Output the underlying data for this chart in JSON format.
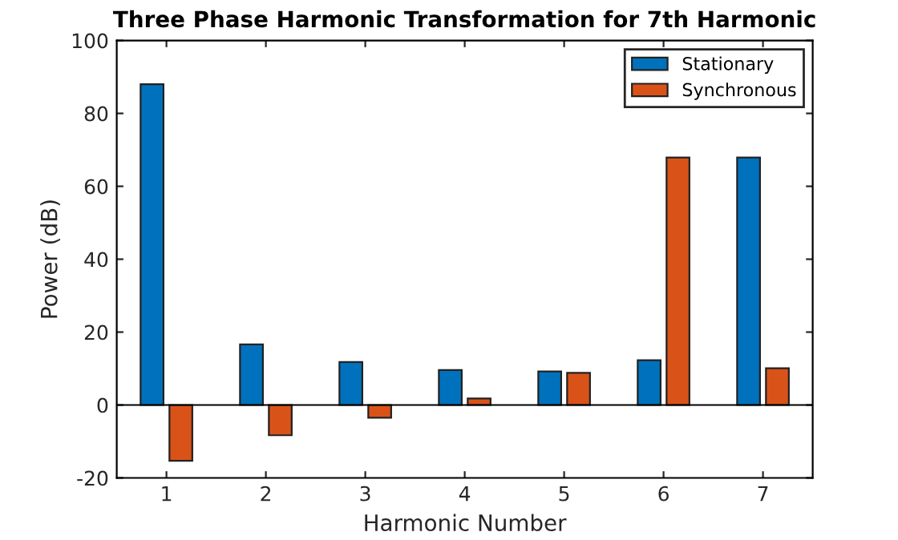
{
  "chart_data": {
    "type": "bar",
    "title": "Three Phase Harmonic Transformation for 7th Harmonic",
    "xlabel": "Harmonic Number",
    "ylabel": "Power (dB)",
    "x": [
      1,
      2,
      3,
      4,
      5,
      6,
      7
    ],
    "xlim": [
      0.5,
      7.5
    ],
    "xticks": [
      1,
      2,
      3,
      4,
      5,
      6,
      7
    ],
    "ylim": [
      -20,
      100
    ],
    "yticks": [
      -20,
      0,
      20,
      40,
      60,
      80,
      100
    ],
    "series": [
      {
        "name": "Stationary",
        "color": "#0072bd",
        "values": [
          88,
          16.6,
          11.8,
          9.6,
          9.2,
          12.3,
          67.9
        ]
      },
      {
        "name": "Synchronous",
        "color": "#d95319",
        "values": [
          -15.3,
          -8.3,
          -3.5,
          1.8,
          8.8,
          67.9,
          10.1
        ]
      }
    ],
    "ref_lines": [
      {
        "axis": "y",
        "value": 0,
        "color": "#000000"
      }
    ],
    "legend": "top right",
    "grid": false
  }
}
